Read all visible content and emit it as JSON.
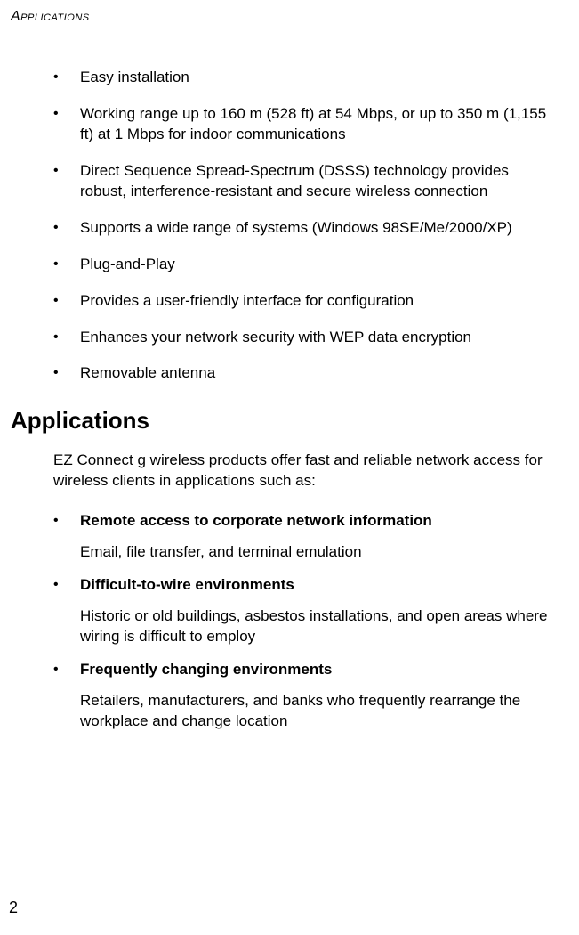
{
  "header": "Applications",
  "features": [
    "Easy installation",
    "Working range up to 160 m (528 ft) at 54 Mbps, or up to 350 m (1,155 ft) at 1 Mbps for indoor communications",
    "Direct Sequence Spread-Spectrum (DSSS) technology provides robust, interference-resistant and secure wireless connection",
    "Supports a wide range of systems (Windows 98SE/Me/2000/XP)",
    "Plug-and-Play",
    "Provides a user-friendly interface for configuration",
    "Enhances your network security with WEP data encryption",
    "Removable antenna"
  ],
  "section_title": "Applications",
  "intro": "EZ Connect g wireless products offer fast and reliable network access for wireless clients in applications such as:",
  "apps": [
    {
      "title": "Remote access to corporate network information",
      "desc": "Email, file transfer, and terminal emulation"
    },
    {
      "title": "Difficult-to-wire environments",
      "desc": "Historic or old buildings, asbestos installations, and open areas where wiring is difficult to employ"
    },
    {
      "title": "Frequently changing environments",
      "desc": "Retailers, manufacturers, and banks who frequently rearrange the workplace and change location"
    }
  ],
  "page_number": "2"
}
